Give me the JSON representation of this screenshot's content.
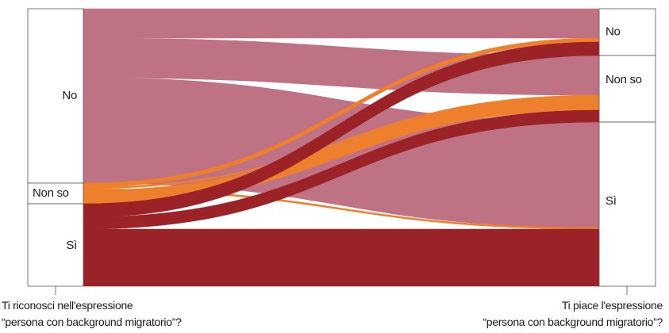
{
  "chart_data": {
    "type": "sankey",
    "left_question": {
      "line1": "Ti riconosci nell'espressione",
      "line2": "“persona con background migratorio”?"
    },
    "right_question": {
      "line1": "Ti piace l'espressione",
      "line2": "“persona con background migratorio”?"
    },
    "left_nodes": [
      {
        "id": "L_no",
        "label": "No",
        "value": 220
      },
      {
        "id": "L_nonso",
        "label": "Non so",
        "value": 26
      },
      {
        "id": "L_si",
        "label": "Sì",
        "value": 104
      }
    ],
    "right_nodes": [
      {
        "id": "R_no",
        "label": "No",
        "value": 59
      },
      {
        "id": "R_nonso",
        "label": "Non so",
        "value": 84
      },
      {
        "id": "R_si",
        "label": "Sì",
        "value": 207
      }
    ],
    "flows": [
      {
        "from": "L_no",
        "to": "R_no",
        "value": 37
      },
      {
        "from": "L_no",
        "to": "R_nonso",
        "value": 50
      },
      {
        "from": "L_no",
        "to": "R_si",
        "value": 133
      },
      {
        "from": "L_nonso",
        "to": "R_no",
        "value": 5
      },
      {
        "from": "L_nonso",
        "to": "R_nonso",
        "value": 2
      },
      {
        "from": "L_nonso",
        "to": "R_si",
        "value": 2
      },
      {
        "from": "L_nonso",
        "to": "R_nonso",
        "value": 17
      },
      {
        "from": "L_si",
        "to": "R_no",
        "value": 17
      },
      {
        "from": "L_si",
        "to": "R_nonso",
        "value": 15
      },
      {
        "from": "L_si",
        "to": "R_si",
        "value": 72
      }
    ],
    "colors": {
      "from_no": "#c07285",
      "from_nonso": "#ee7f2d",
      "from_si": "#9b2226",
      "node_fill": "#ffffff",
      "node_stroke": "#555555"
    }
  }
}
